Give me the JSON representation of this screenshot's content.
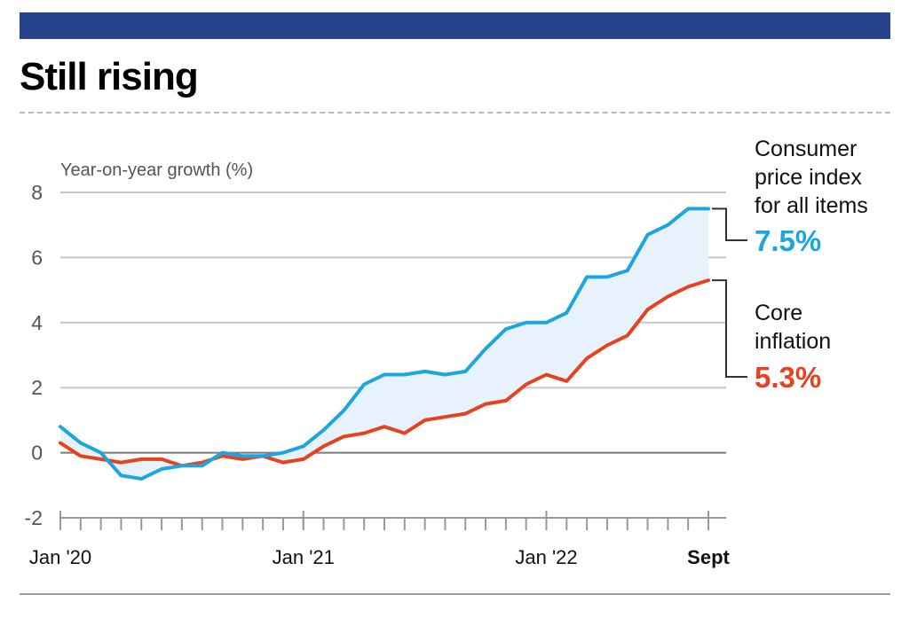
{
  "header": {
    "title": "Still rising"
  },
  "colors": {
    "top_bar": "#26428b",
    "cpi": "#1ba6e0",
    "core": "#e5421d",
    "area_fill": "#e8f2fc"
  },
  "chart_data": {
    "type": "line",
    "title": "Still rising",
    "ylabel": "Year-on-year growth (%)",
    "xlabel": "",
    "ylim": [
      -2,
      8
    ],
    "yticks": [
      -2,
      0,
      2,
      4,
      6,
      8
    ],
    "grid": true,
    "x_tick_labels": [
      {
        "month_index": 0,
        "label": "Jan '20",
        "bold": false
      },
      {
        "month_index": 12,
        "label": "Jan '21",
        "bold": false
      },
      {
        "month_index": 24,
        "label": "Jan '22",
        "bold": false
      },
      {
        "month_index": 32,
        "label": "Sept",
        "bold": true
      }
    ],
    "months": [
      "2020-01",
      "2020-02",
      "2020-03",
      "2020-04",
      "2020-05",
      "2020-06",
      "2020-07",
      "2020-08",
      "2020-09",
      "2020-10",
      "2020-11",
      "2020-12",
      "2021-01",
      "2021-02",
      "2021-03",
      "2021-04",
      "2021-05",
      "2021-06",
      "2021-07",
      "2021-08",
      "2021-09",
      "2021-10",
      "2021-11",
      "2021-12",
      "2022-01",
      "2022-02",
      "2022-03",
      "2022-04",
      "2022-05",
      "2022-06",
      "2022-07",
      "2022-08",
      "2022-09"
    ],
    "series": [
      {
        "name": "Consumer price index for all items",
        "label_lines": [
          "Consumer",
          "price index",
          "for all items"
        ],
        "end_label": "7.5%",
        "color": "#1ba6e0",
        "values": [
          0.8,
          0.3,
          0.0,
          -0.7,
          -0.8,
          -0.5,
          -0.4,
          -0.4,
          0.0,
          -0.1,
          -0.1,
          0.0,
          0.2,
          0.7,
          1.3,
          2.1,
          2.4,
          2.4,
          2.5,
          2.4,
          2.5,
          3.2,
          3.8,
          4.0,
          4.0,
          4.3,
          5.4,
          5.4,
          5.6,
          6.7,
          7.0,
          7.5,
          7.5
        ]
      },
      {
        "name": "Core inflation",
        "label_lines": [
          "Core",
          "inflation"
        ],
        "end_label": "5.3%",
        "color": "#e5421d",
        "values": [
          0.3,
          -0.1,
          -0.2,
          -0.3,
          -0.2,
          -0.2,
          -0.4,
          -0.3,
          -0.1,
          -0.2,
          -0.1,
          -0.3,
          -0.2,
          0.2,
          0.5,
          0.6,
          0.8,
          0.6,
          1.0,
          1.1,
          1.2,
          1.5,
          1.6,
          2.1,
          2.4,
          2.2,
          2.9,
          3.3,
          3.6,
          4.4,
          4.8,
          5.1,
          5.3
        ]
      }
    ]
  }
}
